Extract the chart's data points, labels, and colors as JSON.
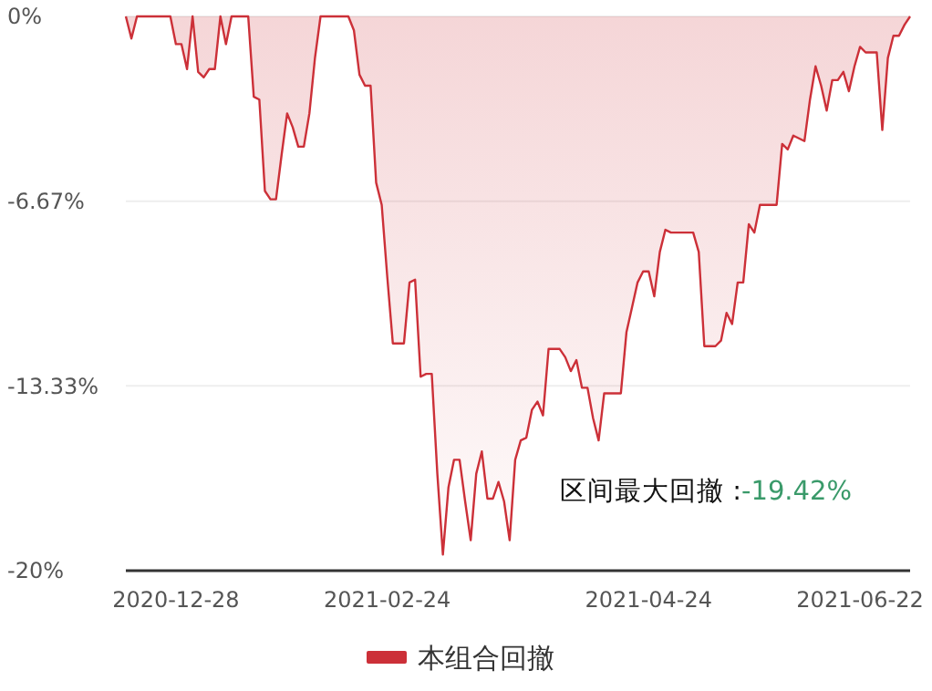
{
  "chart_data": {
    "type": "area",
    "categories": [
      null,
      null,
      null,
      null,
      null,
      null,
      null,
      null,
      null,
      "2020-12-28",
      null,
      null,
      null,
      null,
      null,
      null,
      null,
      null,
      null,
      null,
      null,
      null,
      null,
      null,
      null,
      null,
      null,
      null,
      null,
      null,
      null,
      null,
      null,
      null,
      null,
      null,
      null,
      null,
      null,
      null,
      null,
      null,
      null,
      null,
      null,
      null,
      null,
      "2021-02-24",
      null,
      null,
      null,
      null,
      null,
      null,
      null,
      null,
      null,
      null,
      null,
      null,
      null,
      null,
      null,
      null,
      null,
      null,
      null,
      null,
      null,
      null,
      null,
      null,
      null,
      null,
      null,
      null,
      null,
      null,
      null,
      null,
      null,
      null,
      null,
      null,
      null,
      null,
      null,
      null,
      null,
      null,
      null,
      null,
      null,
      null,
      "2021-04-24",
      null,
      null,
      null,
      null,
      null,
      null,
      null,
      null,
      null,
      null,
      null,
      null,
      null,
      null,
      null,
      null,
      null,
      null,
      null,
      null,
      null,
      null,
      null,
      null,
      null,
      null,
      null,
      null,
      null,
      null,
      null,
      null,
      null,
      null,
      null,
      null,
      null,
      "2021-06-22",
      null,
      null,
      null,
      null,
      null,
      null,
      null,
      null,
      null
    ],
    "series": [
      {
        "name": "本组合回撤",
        "color": "#cc3038",
        "values": [
          0,
          -0.8,
          0,
          0,
          0,
          0,
          0,
          0,
          0,
          -1.0,
          -1.0,
          -1.9,
          0,
          -2.0,
          -2.2,
          -1.9,
          -1.9,
          0,
          -1.0,
          0,
          0,
          0,
          0,
          -2.9,
          -3.0,
          -6.3,
          -6.6,
          -6.6,
          -5.0,
          -3.5,
          -4.0,
          -4.7,
          -4.7,
          -3.5,
          -1.5,
          0,
          0,
          0,
          0,
          0,
          0,
          -0.5,
          -2.1,
          -2.5,
          -2.5,
          -6.0,
          -6.8,
          -9.4,
          -11.8,
          -11.8,
          -11.8,
          -9.6,
          -9.5,
          -13.0,
          -12.9,
          -12.9,
          -16.5,
          -19.42,
          -17.0,
          -16.0,
          -16.0,
          -17.5,
          -18.9,
          -16.5,
          -15.7,
          -17.4,
          -17.4,
          -16.8,
          -17.5,
          -18.9,
          -16.0,
          -15.3,
          -15.2,
          -14.2,
          -13.9,
          -14.4,
          -12.0,
          -12.0,
          -12.0,
          -12.3,
          -12.8,
          -12.4,
          -13.4,
          -13.4,
          -14.5,
          -15.3,
          -13.6,
          -13.6,
          -13.6,
          -13.6,
          -11.4,
          -10.5,
          -9.6,
          -9.2,
          -9.2,
          -10.1,
          -8.5,
          -7.7,
          -7.8,
          -7.8,
          -7.8,
          -7.8,
          -7.8,
          -8.5,
          -11.9,
          -11.9,
          -11.9,
          -11.7,
          -10.7,
          -11.1,
          -9.6,
          -9.6,
          -7.5,
          -7.8,
          -6.8,
          -6.8,
          -6.8,
          -6.8,
          -4.6,
          -4.8,
          -4.3,
          -4.4,
          -4.5,
          -3.0,
          -1.8,
          -2.5,
          -3.4,
          -2.3,
          -2.3,
          -2.0,
          -2.7,
          -1.8,
          -1.1,
          -1.3,
          -1.3,
          -1.3,
          -4.1,
          -1.5,
          -0.7,
          -0.7,
          -0.3,
          0
        ]
      }
    ],
    "ylim": [
      -20,
      0
    ],
    "yticks": [
      {
        "value": 0,
        "label": "0%"
      },
      {
        "value": -6.67,
        "label": "-6.67%"
      },
      {
        "value": -13.33,
        "label": "-13.33%"
      },
      {
        "value": -20,
        "label": "-20%"
      }
    ],
    "grid": "y",
    "legend": "bottom",
    "annotations": [
      "区间最大回撤 :-19.42%"
    ]
  }
}
